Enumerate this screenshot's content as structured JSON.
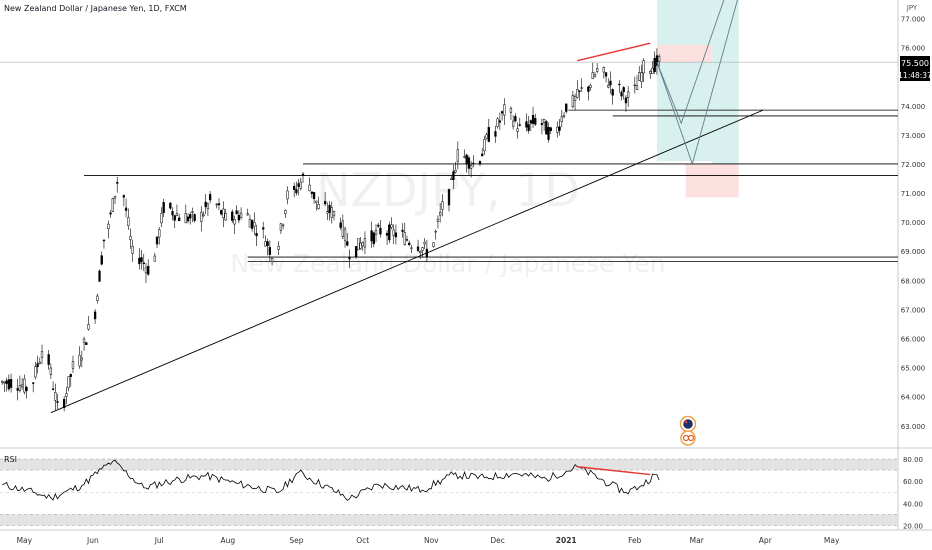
{
  "header": {
    "symbol_title": "New Zealand Dollar / Japanese Yen, 1D, FXCM"
  },
  "watermark": {
    "ticker": "NZDJPY, 1D",
    "name": "New Zealand Dollar / Japanese Yen"
  },
  "price_axis": {
    "currency": "JPY",
    "ticks": [
      "77.000",
      "76.000",
      "75.000",
      "74.000",
      "73.000",
      "72.000",
      "71.000",
      "70.000",
      "69.000",
      "68.000",
      "67.000",
      "66.000",
      "65.000",
      "64.000",
      "63.000"
    ],
    "current_price": "75.500",
    "countdown": "11:48:37"
  },
  "rsi": {
    "label": "RSI",
    "ticks": [
      "80.00",
      "60.00",
      "40.00",
      "20.00"
    ]
  },
  "time_axis": {
    "ticks": [
      "May",
      "Jun",
      "Jul",
      "Aug",
      "Sep",
      "Oct",
      "Nov",
      "Dec",
      "2021",
      "Feb",
      "Mar",
      "Apr",
      "May"
    ]
  },
  "colors": {
    "up": "#ffffff",
    "down": "#000000",
    "divergence": "#e53935",
    "stop_zone": "#fde0e0",
    "target_zone": "#d9f1ee",
    "grid_band": "#e3e3e3"
  },
  "chart_data": {
    "type": "candlestick",
    "x_start": "2020-04-20",
    "x_end": "2021-05-31",
    "ylim": [
      62.7,
      77.7
    ],
    "series": [
      {
        "name": "",
        "x": [
          "2020-04-21",
          "2020-04-28",
          "2020-05-05",
          "2020-05-12",
          "2020-05-19",
          "2020-05-26",
          "2020-06-02",
          "2020-06-08",
          "2020-06-15",
          "2020-06-22",
          "2020-06-29",
          "2020-07-06",
          "2020-07-13",
          "2020-07-20",
          "2020-07-27",
          "2020-08-03",
          "2020-08-10",
          "2020-08-17",
          "2020-08-24",
          "2020-08-31",
          "2020-09-07",
          "2020-09-14",
          "2020-09-21",
          "2020-09-28",
          "2020-10-05",
          "2020-10-12",
          "2020-10-19",
          "2020-10-26",
          "2020-11-02",
          "2020-11-09",
          "2020-11-16",
          "2020-11-23",
          "2020-11-30",
          "2020-12-07",
          "2020-12-14",
          "2020-12-21",
          "2020-12-28",
          "2021-01-04",
          "2021-01-11",
          "2021-01-18",
          "2021-01-25",
          "2021-02-01",
          "2021-02-08"
        ],
        "y": [
          64.5,
          64.3,
          65.6,
          63.6,
          65.0,
          66.3,
          69.4,
          71.4,
          68.9,
          68.4,
          70.5,
          70.2,
          70.1,
          70.7,
          70.1,
          70.3,
          69.8,
          68.9,
          70.9,
          71.5,
          70.5,
          70.3,
          69.0,
          69.4,
          69.7,
          69.6,
          69.3,
          69.0,
          70.5,
          72.3,
          72.0,
          73.0,
          73.8,
          73.2,
          73.5,
          73.0,
          74.0,
          74.5,
          75.2,
          74.6,
          74.3,
          75.3,
          75.5
        ]
      }
    ],
    "levels": [
      75.5,
      73.85,
      73.65,
      72.0,
      71.6,
      68.8,
      68.65
    ],
    "rsi_series": {
      "name": "RSI",
      "ylim": [
        15,
        85
      ],
      "bands": [
        [
          70,
          80
        ],
        [
          20,
          30
        ]
      ],
      "x": [
        "2020-04-21",
        "2020-05-05",
        "2020-05-13",
        "2020-05-27",
        "2020-06-05",
        "2020-06-10",
        "2020-06-24",
        "2020-07-08",
        "2020-07-22",
        "2020-08-05",
        "2020-08-24",
        "2020-09-02",
        "2020-09-25",
        "2020-10-08",
        "2020-10-28",
        "2020-11-11",
        "2020-11-25",
        "2020-12-09",
        "2020-12-23",
        "2021-01-06",
        "2021-01-21",
        "2021-01-28",
        "2021-02-04",
        "2021-02-10",
        "2021-02-12"
      ],
      "y": [
        57,
        50,
        45,
        56,
        71,
        78,
        54,
        61,
        65,
        58,
        50,
        68,
        44,
        57,
        52,
        66,
        63,
        67,
        62,
        73,
        57,
        50,
        56,
        66,
        61
      ]
    },
    "annotations": {
      "trendline": {
        "x": [
          "2020-05-13",
          "2021-03-31"
        ],
        "y": [
          63.45,
          73.85
        ]
      },
      "price_divergence": {
        "x": [
          "2021-01-06",
          "2021-02-08"
        ],
        "y": [
          75.55,
          76.15
        ]
      },
      "rsi_divergence": {
        "x": [
          "2021-01-06",
          "2021-02-08"
        ],
        "y": [
          73,
          66
        ]
      },
      "projection_1": {
        "x": [
          "2021-02-11",
          "2021-02-22",
          "2021-03-14"
        ],
        "y": [
          75.5,
          73.4,
          77.8
        ]
      },
      "projection_2": {
        "x": [
          "2021-02-11",
          "2021-02-27",
          "2021-03-20"
        ],
        "y": [
          75.5,
          72.0,
          77.8
        ]
      },
      "stop_zone": {
        "x": [
          "2021-02-11",
          "2021-03-08"
        ],
        "y": [
          75.5,
          76.1
        ]
      },
      "target_zone": {
        "x": [
          "2021-02-11",
          "2021-03-08"
        ],
        "y": [
          72.1,
          77.7
        ]
      },
      "second_stop_zone": {
        "x": [
          "2021-02-24",
          "2021-03-20"
        ],
        "y": [
          70.85,
          72.0
        ]
      },
      "second_target_zone": {
        "x": [
          "2021-03-08",
          "2021-03-20"
        ],
        "y": [
          72.0,
          77.7
        ]
      }
    }
  }
}
